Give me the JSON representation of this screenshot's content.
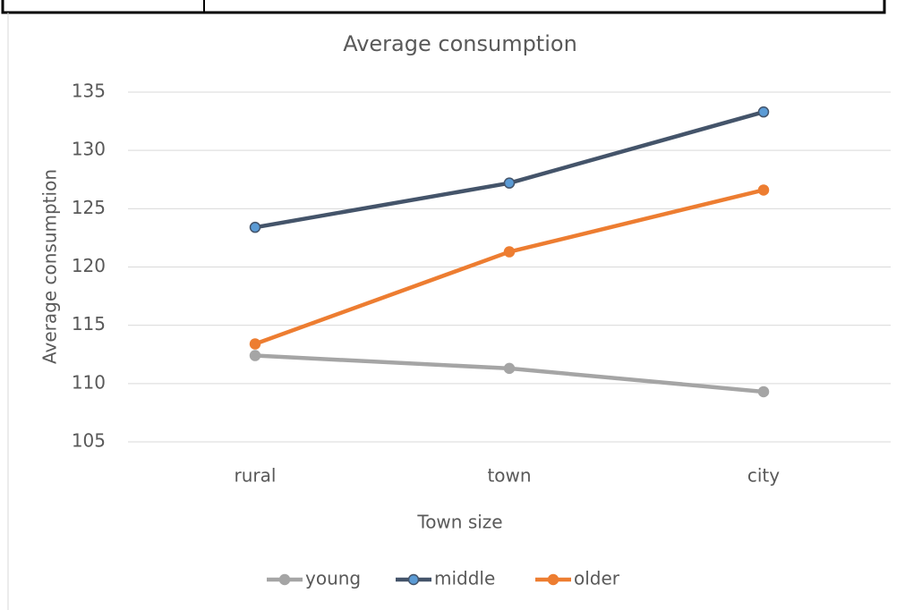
{
  "chart_data": {
    "type": "line",
    "title": "Average consumption",
    "x_label": "Town size",
    "y_label": "Average consumption",
    "categories": [
      "rural",
      "town",
      "city"
    ],
    "series": [
      {
        "name": "young",
        "color": "#a5a5a5",
        "marker_color": "#a5a5a5",
        "values": [
          112.4,
          111.3,
          109.3
        ]
      },
      {
        "name": "middle",
        "color": "#44546a",
        "marker_color": "#5b9bd5",
        "values": [
          123.4,
          127.2,
          133.3
        ]
      },
      {
        "name": "older",
        "color": "#ed7d31",
        "marker_color": "#ed7d31",
        "values": [
          113.4,
          121.3,
          126.6
        ]
      }
    ],
    "ylim": [
      105,
      135
    ],
    "yticks": [
      105,
      110,
      115,
      120,
      125,
      130,
      135
    ],
    "grid": true,
    "legend": "bottom"
  }
}
